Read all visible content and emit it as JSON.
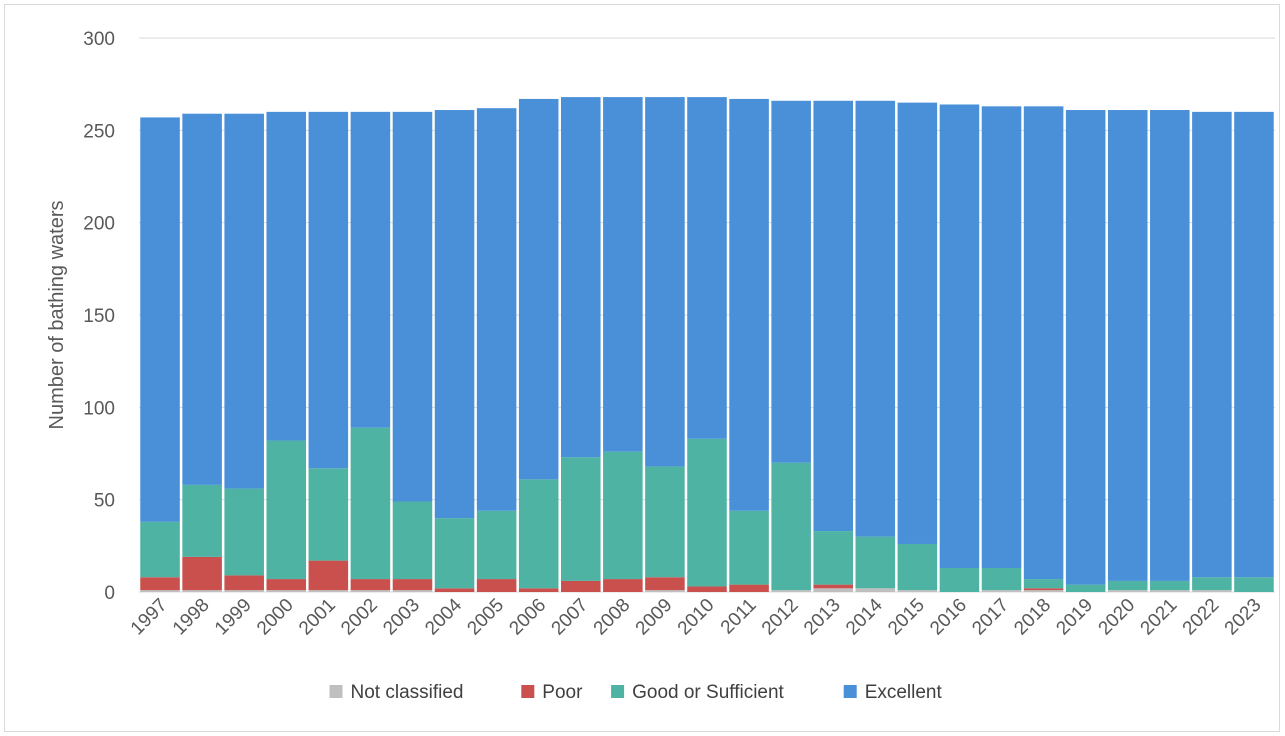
{
  "chart_data": {
    "type": "bar",
    "stacked": true,
    "title": "",
    "xlabel": "",
    "ylabel": "Number of bathing waters",
    "ylim": [
      0,
      300
    ],
    "yticks": [
      0,
      50,
      100,
      150,
      200,
      250,
      300
    ],
    "grid": true,
    "legend_position": "bottom",
    "categories": [
      "1997",
      "1998",
      "1999",
      "2000",
      "2001",
      "2002",
      "2003",
      "2004",
      "2005",
      "2006",
      "2007",
      "2008",
      "2009",
      "2010",
      "2011",
      "2012",
      "2013",
      "2014",
      "2015",
      "2016",
      "2017",
      "2018",
      "2019",
      "2020",
      "2021",
      "2022",
      "2023"
    ],
    "series": [
      {
        "name": "Not classified",
        "color": "#bfbfbf",
        "values": [
          1,
          1,
          1,
          1,
          1,
          1,
          1,
          0,
          0,
          0,
          0,
          0,
          1,
          0,
          0,
          1,
          2,
          2,
          1,
          0,
          1,
          1,
          0,
          1,
          1,
          1,
          0
        ]
      },
      {
        "name": "Poor",
        "color": "#c9504c",
        "values": [
          7,
          18,
          8,
          6,
          16,
          6,
          6,
          2,
          7,
          2,
          6,
          7,
          7,
          3,
          4,
          0,
          2,
          0,
          0,
          0,
          0,
          1,
          0,
          0,
          0,
          0,
          0
        ]
      },
      {
        "name": "Good or Sufficient",
        "color": "#4fb3a3",
        "values": [
          30,
          39,
          47,
          75,
          50,
          82,
          42,
          38,
          37,
          59,
          67,
          69,
          60,
          80,
          40,
          69,
          29,
          28,
          25,
          13,
          12,
          5,
          4,
          5,
          5,
          7,
          8
        ]
      },
      {
        "name": "Excellent",
        "color": "#4a90d9",
        "values": [
          219,
          201,
          203,
          178,
          193,
          171,
          211,
          221,
          218,
          206,
          195,
          192,
          200,
          185,
          223,
          196,
          233,
          236,
          239,
          251,
          250,
          256,
          257,
          255,
          255,
          252,
          252
        ]
      }
    ]
  }
}
